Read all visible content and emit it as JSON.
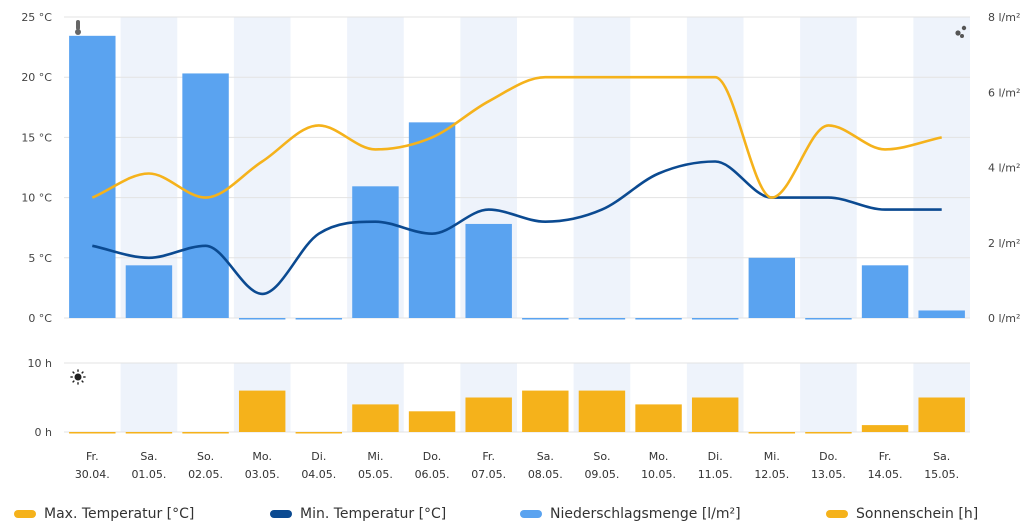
{
  "chart_data": {
    "type": "combo",
    "categories": [
      {
        "day": "Fr.",
        "date": "30.04."
      },
      {
        "day": "Sa.",
        "date": "01.05."
      },
      {
        "day": "So.",
        "date": "02.05."
      },
      {
        "day": "Mo.",
        "date": "03.05."
      },
      {
        "day": "Di.",
        "date": "04.05."
      },
      {
        "day": "Mi.",
        "date": "05.05."
      },
      {
        "day": "Do.",
        "date": "06.05."
      },
      {
        "day": "Fr.",
        "date": "07.05."
      },
      {
        "day": "Sa.",
        "date": "08.05."
      },
      {
        "day": "So.",
        "date": "09.05."
      },
      {
        "day": "Mo.",
        "date": "10.05."
      },
      {
        "day": "Di.",
        "date": "11.05."
      },
      {
        "day": "Mi.",
        "date": "12.05."
      },
      {
        "day": "Do.",
        "date": "13.05."
      },
      {
        "day": "Fr.",
        "date": "14.05."
      },
      {
        "day": "Sa.",
        "date": "15.05."
      }
    ],
    "series": [
      {
        "name": "Max. Temperatur [°C]",
        "type": "line",
        "axis": "temp",
        "color": "#f5b21b",
        "values": [
          10,
          12,
          10,
          13,
          16,
          14,
          15,
          18,
          20,
          20,
          20,
          20,
          10,
          16,
          14,
          15
        ]
      },
      {
        "name": "Min. Temperatur [°C]",
        "type": "line",
        "axis": "temp",
        "color": "#0b4a91",
        "values": [
          6,
          5,
          6,
          2,
          7,
          8,
          7,
          9,
          8,
          9,
          12,
          13,
          10,
          10,
          9,
          9
        ]
      },
      {
        "name": "Niederschlagsmenge [l/m²]",
        "type": "bar",
        "axis": "precip",
        "color": "#5aa3f0",
        "values": [
          7.5,
          1.4,
          6.5,
          0,
          0,
          3.5,
          5.2,
          2.5,
          0,
          0,
          0,
          0,
          1.6,
          0,
          1.4,
          0.2
        ]
      },
      {
        "name": "Sonnenschein [h]",
        "type": "bar",
        "axis": "sun",
        "color": "#f5b21b",
        "values": [
          0,
          0,
          0,
          6,
          0,
          4,
          3,
          5,
          6,
          6,
          4,
          5,
          0,
          0,
          1,
          5
        ]
      }
    ],
    "axes": {
      "temp": {
        "ticks": [
          "0 °C",
          "5 °C",
          "10 °C",
          "15 °C",
          "20 °C",
          "25 °C"
        ],
        "range": [
          0,
          25
        ]
      },
      "precip": {
        "ticks": [
          "0 l/m²",
          "2 l/m²",
          "4 l/m²",
          "6 l/m²",
          "8 l/m²"
        ],
        "range": [
          0,
          8
        ]
      },
      "sun": {
        "ticks": [
          "0 h",
          "10 h"
        ],
        "range": [
          0,
          10
        ]
      }
    },
    "legend_position": "bottom",
    "colors": {
      "band": "#eef3fb",
      "grid": "#e3e3e3"
    }
  },
  "icons": {
    "temperature": "thermometer-icon",
    "precipitation": "raindrops-icon",
    "sunshine": "sun-icon"
  }
}
